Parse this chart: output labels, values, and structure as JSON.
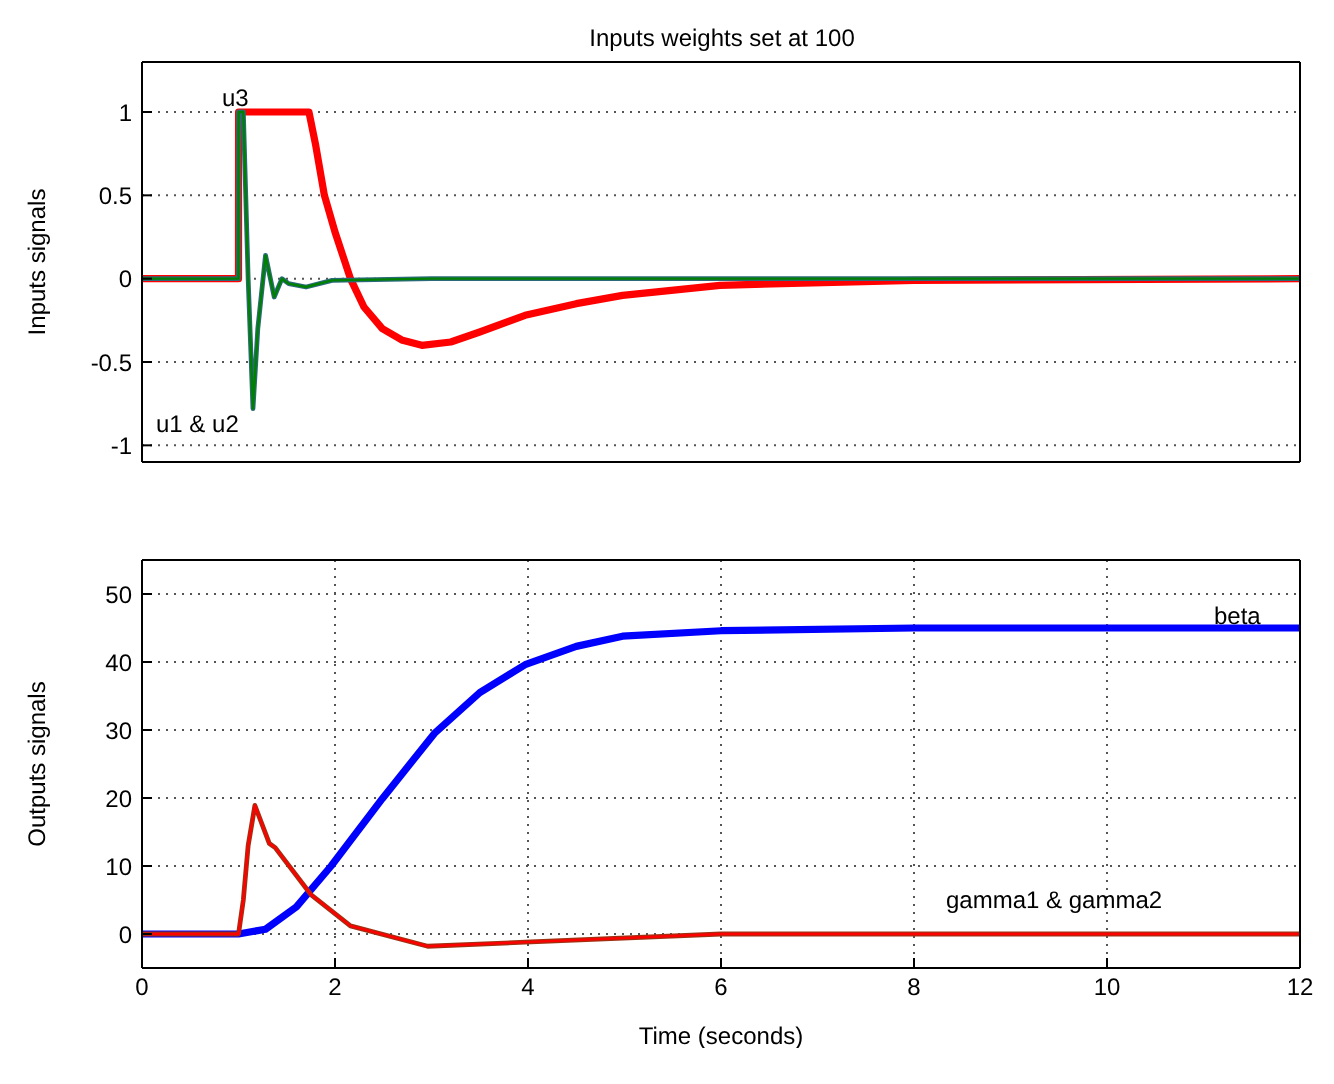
{
  "chart_data": [
    {
      "type": "line",
      "title": "Inputs weights set at 100",
      "ylabel": "Inputs signals",
      "xlim": [
        0,
        12
      ],
      "xticks": [
        0,
        2,
        4,
        6,
        8,
        10,
        12
      ],
      "ylim": [
        -1.1,
        1.3
      ],
      "yticks": [
        -1,
        -0.5,
        0,
        0.5,
        1
      ],
      "grid": true,
      "tick_labels": "y",
      "annotations": [
        "u3",
        "u1 & u2"
      ],
      "series": [
        {
          "color": "#ff0000",
          "x": [
            0,
            1,
            1.001,
            1.73,
            1.8,
            1.89,
            2,
            2.16,
            2.3,
            2.49,
            2.7,
            2.9,
            3.2,
            3.5,
            3.97,
            4.5,
            4.98,
            5.99,
            8,
            12
          ],
          "values": [
            0,
            0,
            1,
            1,
            0.8,
            0.5,
            0.28,
            0,
            -0.17,
            -0.3,
            -0.37,
            -0.4,
            -0.38,
            -0.32,
            -0.22,
            -0.15,
            -0.1,
            -0.04,
            -0.01,
            0
          ]
        },
        {
          "color": "#2a6a7a",
          "x": [
            0,
            1,
            1.001,
            1.05,
            1.1,
            1.15,
            1.2,
            1.28,
            1.37,
            1.45,
            1.52,
            1.7,
            1.97,
            3,
            12
          ],
          "values": [
            0,
            0,
            1,
            1,
            0,
            -0.78,
            -0.3,
            0.14,
            -0.11,
            0,
            -0.03,
            -0.05,
            -0.01,
            0,
            0
          ]
        },
        {
          "color": "#008000",
          "x": [
            0,
            1,
            1.001,
            1.05,
            1.1,
            1.15,
            1.2,
            1.28,
            1.37,
            1.45,
            1.52,
            1.7,
            1.97,
            3,
            12
          ],
          "values": [
            0,
            0,
            1,
            1,
            0,
            -0.78,
            -0.3,
            0.14,
            -0.11,
            0,
            -0.03,
            -0.05,
            -0.01,
            0,
            0
          ]
        }
      ]
    },
    {
      "type": "line",
      "xlabel": "Time (seconds)",
      "ylabel": "Outputs signals",
      "xlim": [
        0,
        12
      ],
      "xticks": [
        0,
        2,
        4,
        6,
        8,
        10,
        12
      ],
      "ylim": [
        -5,
        55
      ],
      "yticks": [
        0,
        10,
        20,
        30,
        40,
        50
      ],
      "grid": true,
      "annotations": [
        "beta",
        "gamma1 & gamma2"
      ],
      "series": [
        {
          "color": "#0000ff",
          "x": [
            0,
            1,
            1.28,
            1.6,
            1.96,
            2.49,
            3.03,
            3.5,
            3.97,
            4.5,
            4.98,
            6,
            8,
            12
          ],
          "values": [
            0,
            0,
            0.7,
            4,
            10,
            19.9,
            29.5,
            35.5,
            39.6,
            42.3,
            43.8,
            44.6,
            45,
            45
          ]
        },
        {
          "color": "#a03010",
          "x": [
            0,
            1,
            1.05,
            1.1,
            1.17,
            1.32,
            1.38,
            1.75,
            2.16,
            2.96,
            3.97,
            6,
            12
          ],
          "values": [
            0,
            0,
            5,
            13,
            18.9,
            13.3,
            12.7,
            5.8,
            1.2,
            -1.8,
            -1.2,
            0,
            0
          ]
        },
        {
          "color": "#ff0000",
          "x": [
            0,
            1,
            1.05,
            1.1,
            1.17,
            1.32,
            1.38,
            1.75,
            2.16,
            2.96,
            3.97,
            6,
            12
          ],
          "values": [
            0,
            0,
            5,
            13,
            18.9,
            13.3,
            12.7,
            5.8,
            1.2,
            -1.8,
            -1.2,
            0,
            0
          ]
        }
      ]
    }
  ]
}
